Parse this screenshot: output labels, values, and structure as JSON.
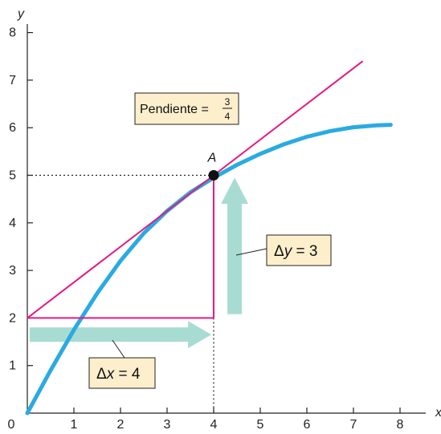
{
  "colors": {
    "curve": "#2aaae2",
    "tangent": "#e6197f",
    "arrow": "#a8dcd2",
    "label_bg": "#fdefcc",
    "axis": "#222222",
    "point": "#111111"
  },
  "chart_data": {
    "type": "line",
    "xlabel": "x",
    "ylabel": "y",
    "xlim": [
      0,
      8.3
    ],
    "ylim": [
      0,
      8.4
    ],
    "x_ticks": [
      "0",
      "1",
      "2",
      "3",
      "4",
      "5",
      "6",
      "7",
      "8"
    ],
    "y_ticks": [
      "1",
      "2",
      "3",
      "4",
      "5",
      "6",
      "7",
      "8"
    ],
    "grid": false,
    "series": [
      {
        "kind": "curve",
        "points": [
          [
            0,
            0
          ],
          [
            0.5,
            0.9
          ],
          [
            1,
            1.75
          ],
          [
            1.5,
            2.52
          ],
          [
            2,
            3.2
          ],
          [
            2.5,
            3.78
          ],
          [
            3,
            4.25
          ],
          [
            3.5,
            4.64
          ],
          [
            4,
            4.95
          ],
          [
            4.5,
            5.22
          ],
          [
            5,
            5.45
          ],
          [
            5.5,
            5.65
          ],
          [
            6,
            5.81
          ],
          [
            6.5,
            5.93
          ],
          [
            7,
            6.01
          ],
          [
            7.5,
            6.05
          ],
          [
            7.8,
            6.06
          ]
        ]
      },
      {
        "kind": "tangent",
        "points": [
          [
            0,
            2
          ],
          [
            7.2,
            7.4
          ]
        ]
      }
    ],
    "point": {
      "label": "A",
      "x": 4,
      "y": 5
    },
    "triangle": {
      "x1": 0,
      "x2": 4,
      "y1": 2,
      "y2": 5
    },
    "annotations": {
      "slope_text": "Pendiente =",
      "slope_num": "3",
      "slope_den": "4",
      "dx_delta": "Δ",
      "dx_var": "x",
      "dx_rest": " = 4",
      "dy_delta": "Δ",
      "dy_var": "y",
      "dy_rest": " = 3"
    }
  }
}
